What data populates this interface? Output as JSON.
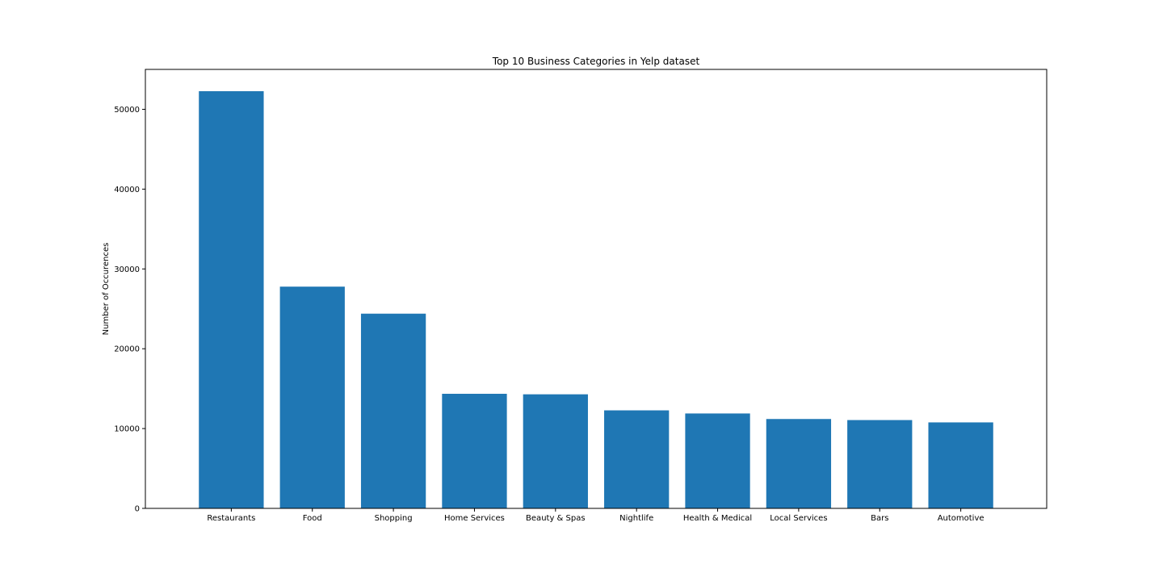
{
  "chart_data": {
    "type": "bar",
    "title": "Top 10 Business Categories in Yelp dataset",
    "xlabel": "",
    "ylabel": "Number of Occurences",
    "categories": [
      "Restaurants",
      "Food",
      "Shopping",
      "Home Services",
      "Beauty & Spas",
      "Nightlife",
      "Health & Medical",
      "Local Services",
      "Bars",
      "Automotive"
    ],
    "values": [
      52268,
      27781,
      24395,
      14356,
      14292,
      12281,
      11890,
      11198,
      11065,
      10773
    ],
    "ylim": [
      0,
      55000
    ],
    "yticks": [
      0,
      10000,
      20000,
      30000,
      40000,
      50000
    ],
    "grid": false,
    "bar_color": "#1f77b4"
  }
}
